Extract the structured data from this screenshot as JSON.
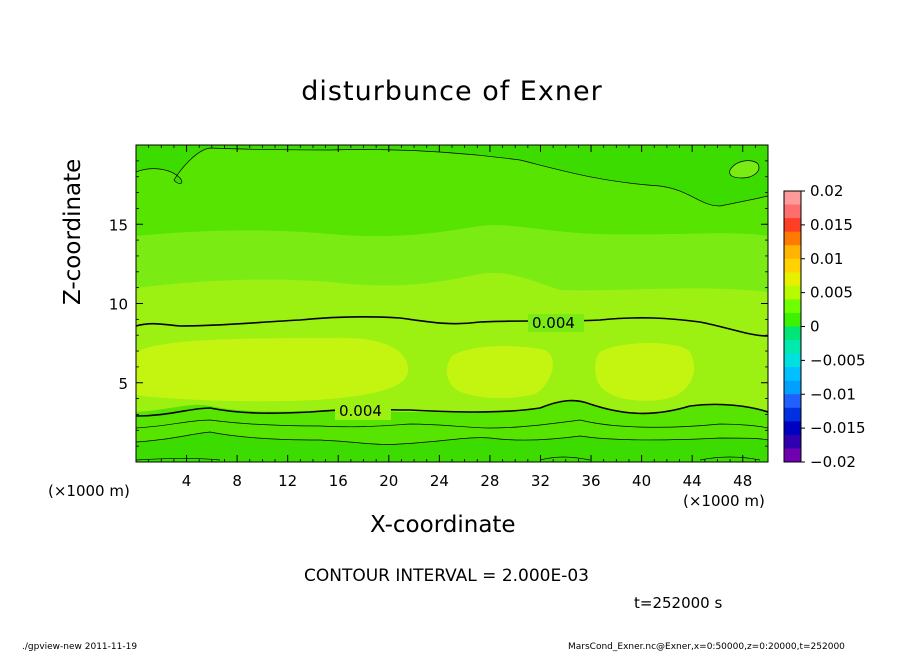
{
  "chart_data": {
    "type": "contour",
    "title": "disturbunce of Exner",
    "xlabel": "X-coordinate",
    "ylabel": "Z-coordinate",
    "x_unit": "(×1000 m)",
    "y_unit": "(×1000 m)",
    "xlim": [
      0,
      50
    ],
    "ylim": [
      0,
      20
    ],
    "x_ticks": [
      4,
      8,
      12,
      16,
      20,
      24,
      28,
      32,
      36,
      40,
      44,
      48
    ],
    "y_ticks": [
      5,
      10,
      15
    ],
    "contour_label_1": "0.004",
    "contour_label_2": "0.004",
    "colorbar": {
      "ticks": [
        "0.02",
        "0.015",
        "0.01",
        "0.005",
        "0",
        "−0.005",
        "−0.01",
        "−0.015",
        "−0.02"
      ],
      "colors": [
        "#ff9a9a",
        "#ff6e6e",
        "#ff3e26",
        "#ff7a00",
        "#ffb400",
        "#ffd200",
        "#e8f000",
        "#b8fa00",
        "#6fff00",
        "#3cf200",
        "#00e676",
        "#00eab0",
        "#00e0e0",
        "#00c0ff",
        "#00a0ff",
        "#2060ff",
        "#0030e0",
        "#0000c0",
        "#3000b0",
        "#7000b0"
      ]
    },
    "fill_colors": {
      "high": "#c4f510",
      "mid": "#9cf012",
      "base": "#7aec14",
      "low": "#56e400",
      "lowest": "#3cdc00"
    }
  },
  "contour_interval": "CONTOUR INTERVAL = 2.000E-03",
  "time_label": "t=252000 s",
  "footer_left": "./gpview-new   2011-11-19",
  "footer_right": "MarsCond_Exner.nc@Exner,x=0:50000,z=0:20000,t=252000"
}
